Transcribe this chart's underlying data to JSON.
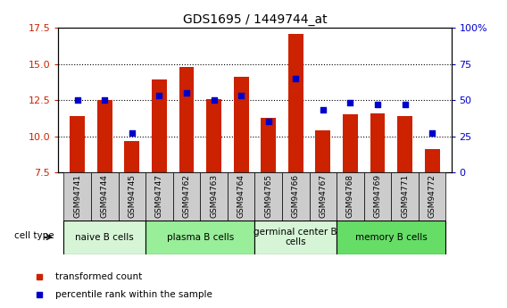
{
  "title": "GDS1695 / 1449744_at",
  "samples": [
    "GSM94741",
    "GSM94744",
    "GSM94745",
    "GSM94747",
    "GSM94762",
    "GSM94763",
    "GSM94764",
    "GSM94765",
    "GSM94766",
    "GSM94767",
    "GSM94768",
    "GSM94769",
    "GSM94771",
    "GSM94772"
  ],
  "transformed_count": [
    11.4,
    12.5,
    9.65,
    13.9,
    14.8,
    12.55,
    14.1,
    11.3,
    17.1,
    10.4,
    11.5,
    11.6,
    11.4,
    9.1
  ],
  "percentile_rank": [
    50,
    50,
    27,
    53,
    55,
    50,
    53,
    35,
    65,
    43,
    48,
    47,
    47,
    27
  ],
  "ylim_left": [
    7.5,
    17.5
  ],
  "ylim_right": [
    0,
    100
  ],
  "yticks_left": [
    7.5,
    10.0,
    12.5,
    15.0,
    17.5
  ],
  "yticks_right": [
    0,
    25,
    50,
    75,
    100
  ],
  "ytick_labels_right": [
    "0",
    "25",
    "50",
    "75",
    "100%"
  ],
  "cell_groups": [
    {
      "label": "naive B cells",
      "start": 0,
      "end": 3,
      "color": "#d6f5d6"
    },
    {
      "label": "plasma B cells",
      "start": 3,
      "end": 7,
      "color": "#99ee99"
    },
    {
      "label": "germinal center B\ncells",
      "start": 7,
      "end": 10,
      "color": "#d6f5d6"
    },
    {
      "label": "memory B cells",
      "start": 10,
      "end": 14,
      "color": "#66dd66"
    }
  ],
  "bar_color": "#cc2200",
  "dot_color": "#0000cc",
  "bar_width": 0.55,
  "grid_yticks": [
    10.0,
    12.5,
    15.0
  ],
  "bar_bottom": 7.5,
  "xtick_bg_color": "#cccccc",
  "legend_items": [
    {
      "label": "transformed count",
      "color": "#cc2200"
    },
    {
      "label": "percentile rank within the sample",
      "color": "#0000cc"
    }
  ]
}
